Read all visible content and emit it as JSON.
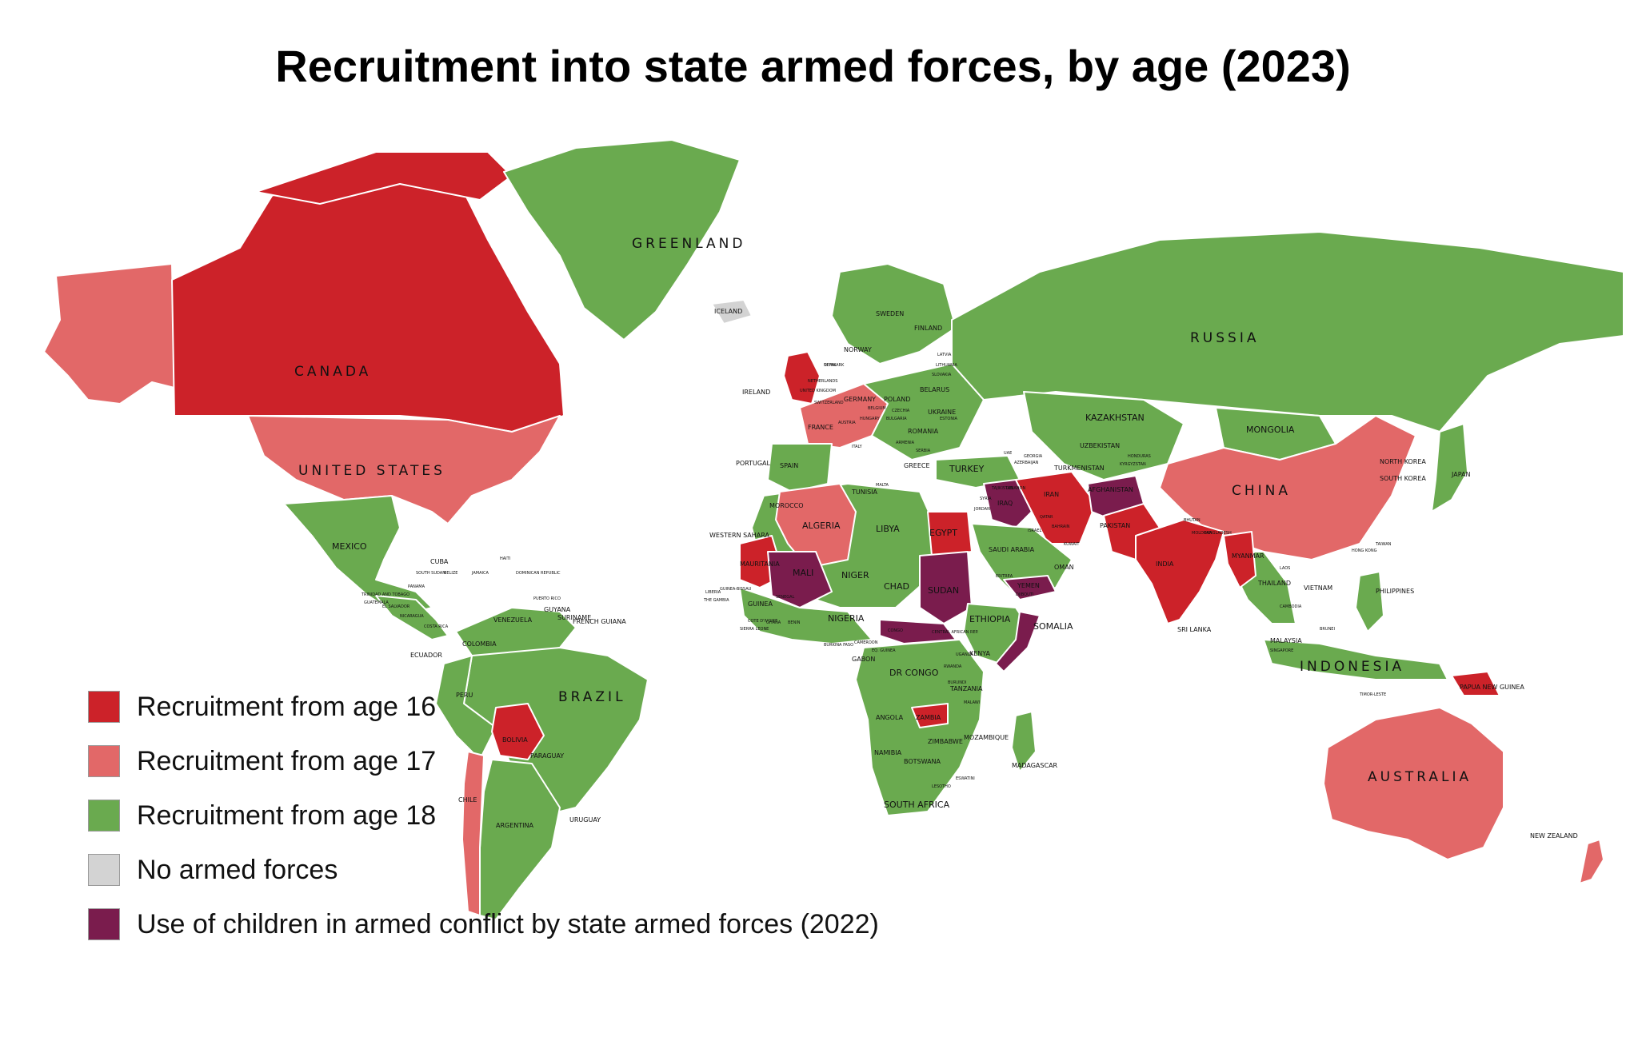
{
  "title": "Recruitment into state armed forces, by age (2023)",
  "colors": {
    "age16": "#cc2229",
    "age17": "#e26868",
    "age18": "#6aaa4f",
    "none": "#d3d3d3",
    "conflict": "#7a1c4d",
    "ocean": "#ffffff"
  },
  "legend": [
    {
      "key": "age16",
      "label": "Recruitment from age 16"
    },
    {
      "key": "age17",
      "label": "Recruitment from age 17"
    },
    {
      "key": "age18",
      "label": "Recruitment from age 18"
    },
    {
      "key": "none",
      "label": "No armed forces"
    },
    {
      "key": "conflict",
      "label": "Use of children in armed conflict by state armed forces (2022)"
    }
  ],
  "labels_big": [
    "GREENLAND",
    "CANADA",
    "UNITED STATES",
    "RUSSIA",
    "KAZAKHSTAN",
    "MONGOLIA",
    "CHINA",
    "BRAZIL",
    "AUSTRALIA",
    "INDONESIA"
  ],
  "labels_med": [
    "MEXICO",
    "CUBA",
    "ALGERIA",
    "LIBYA",
    "EGYPT",
    "MALI",
    "NIGER",
    "CHAD",
    "SUDAN",
    "ETHIOPIA",
    "SOMALIA",
    "NIGERIA",
    "DR CONGO",
    "KENYA",
    "TANZANIA",
    "ANGOLA",
    "ZAMBIA",
    "NAMIBIA",
    "SOUTH AFRICA",
    "MAURITANIA",
    "WESTERN SAHARA",
    "MOROCCO",
    "SAUDI ARABIA",
    "IRAN",
    "IRAQ",
    "TURKEY",
    "PAKISTAN",
    "INDIA",
    "AFGHANISTAN",
    "UKRAINE",
    "POLAND",
    "GERMANY",
    "FRANCE",
    "SPAIN",
    "BELARUS",
    "SWEDEN",
    "FINLAND",
    "NORWAY",
    "ICELAND",
    "IRELAND",
    "PORTUGAL",
    "COLOMBIA",
    "VENEZUELA",
    "PERU",
    "BOLIVIA",
    "PARAGUAY",
    "CHILE",
    "ARGENTINA",
    "URUGUAY",
    "ECUADOR",
    "GUYANA",
    "SURINAME",
    "FRENCH GUIANA",
    "PHILIPPINES",
    "JAPAN",
    "NEW ZEALAND",
    "MALAYSIA",
    "PAPUA NEW GUINEA",
    "MADAGASCAR",
    "YEMEN",
    "OMAN",
    "VIETNAM",
    "THAILAND",
    "MYANMAR",
    "SOUTH KOREA",
    "NORTH KOREA",
    "SRI LANKA",
    "UZBEKISTAN",
    "TURKMENISTAN",
    "BOTSWANA",
    "ZIMBABWE",
    "MOZAMBIQUE",
    "GABON",
    "GUINEA",
    "TUNISIA",
    "ROMANIA",
    "GREECE"
  ],
  "labels_small": [
    "DENMARK",
    "NETHERLANDS",
    "UNITED KINGDOM",
    "ITALY",
    "MALTA",
    "LEBANON",
    "QATAR",
    "BAHRAIN",
    "BHUTAN",
    "BANGLADESH",
    "TAIWAN",
    "HONG KONG",
    "LAOS",
    "CAMBODIA",
    "BRUNEI",
    "SINGAPORE",
    "TIMOR-LESTE",
    "ESWATINI",
    "LESOTHO",
    "ERITREA",
    "DJIBOUTI",
    "UGANDA",
    "RWANDA",
    "BURUNDI",
    "MALAWI",
    "CAMEROON",
    "BENIN",
    "GHANA",
    "COTE D'IVOIRE",
    "SIERRA LEONE",
    "LIBERIA",
    "THE GAMBIA",
    "GUINEA-BISSAU",
    "SENEGAL",
    "BURKINA FASO",
    "EQ. GUINEA",
    "CONGO",
    "CENTRAL AFRICAN REP.",
    "SOUTH SUDAN",
    "BELIZE",
    "JAMAICA",
    "HAITI",
    "DOMINICAN REPUBLIC",
    "PUERTO RICO",
    "TRINIDAD AND TOBAGO",
    "GUATEMALA",
    "EL SALVADOR",
    "NICARAGUA",
    "COSTA RICA",
    "PANAMA",
    "HONDURAS",
    "KYRGYZSTAN",
    "TAJIKISTAN",
    "SYRIA",
    "JORDAN",
    "ISRAEL",
    "KUWAIT",
    "UAE",
    "GEORGIA",
    "AZERBAIJAN",
    "ARMENIA",
    "SERBIA",
    "BULGARIA",
    "HUNGARY",
    "AUSTRIA",
    "SWITZERLAND",
    "BELGIUM",
    "CZECHIA",
    "SLOVAKIA",
    "LITHUANIA",
    "LATVIA",
    "ESTONIA",
    "MOLDOVA",
    "NEPAL"
  ]
}
